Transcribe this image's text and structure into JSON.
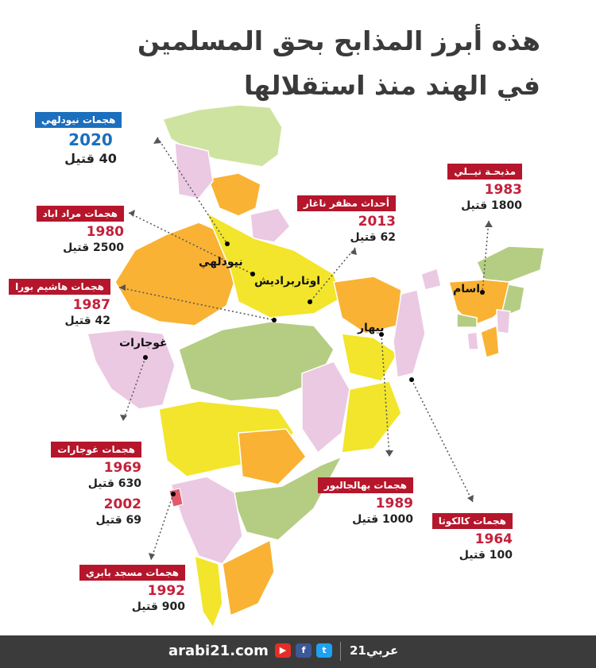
{
  "title": {
    "line1": "هذه أبرز المذابح بحق المسلمين",
    "line2": "في الهند منذ استقلالها"
  },
  "colors": {
    "yellow": "#f2e52b",
    "orange": "#f9b234",
    "pink": "#ebc9e2",
    "green": "#b4cd83",
    "lightgreen": "#cfe3a0",
    "label_red": "#b5162b",
    "label_blue": "#1b6fbd",
    "year_red": "#c4203a",
    "footer": "#3b3b3b"
  },
  "places": {
    "newdelhi": "نيودلهي",
    "uttar": "اوتاربراديش",
    "bihar": "بيهار",
    "assam": "اسام",
    "gujarat": "غوجارات"
  },
  "events": [
    {
      "tag": "هجمات نيودلهي",
      "year": "2020",
      "kills": "40 قتيل"
    },
    {
      "tag": "هجمات مراد اباد",
      "year": "1980",
      "kills": "2500 قتيل"
    },
    {
      "tag": "هجمات هاشيم بورا",
      "year": "1987",
      "kills": "42 قتيل"
    },
    {
      "tag": "أحداث مظفر ناغار",
      "year": "2013",
      "kills": "62 قتيل"
    },
    {
      "tag": "مذبحـة نيــلي",
      "year": "1983",
      "kills": "1800 قتيل"
    },
    {
      "tag": "هجمات غوجارات",
      "year": "1969",
      "kills": "630 قتيل",
      "year2": "2002",
      "kills2": "69 قتيل"
    },
    {
      "tag": "هجمات بهالجالبور",
      "year": "1989",
      "kills": "1000 قتيل"
    },
    {
      "tag": "هجمات كالكوتا",
      "year": "1964",
      "kills": "100 قتيل"
    },
    {
      "tag": "هجمات مسجد بابري",
      "year": "1992",
      "kills": "900 قتيل"
    }
  ],
  "footer": {
    "site": "arabi21.com",
    "brand": "عربي21",
    "social": [
      "youtube-icon",
      "facebook-icon",
      "twitter-icon"
    ],
    "social_glyphs": [
      "▶",
      "f",
      "t"
    ]
  }
}
